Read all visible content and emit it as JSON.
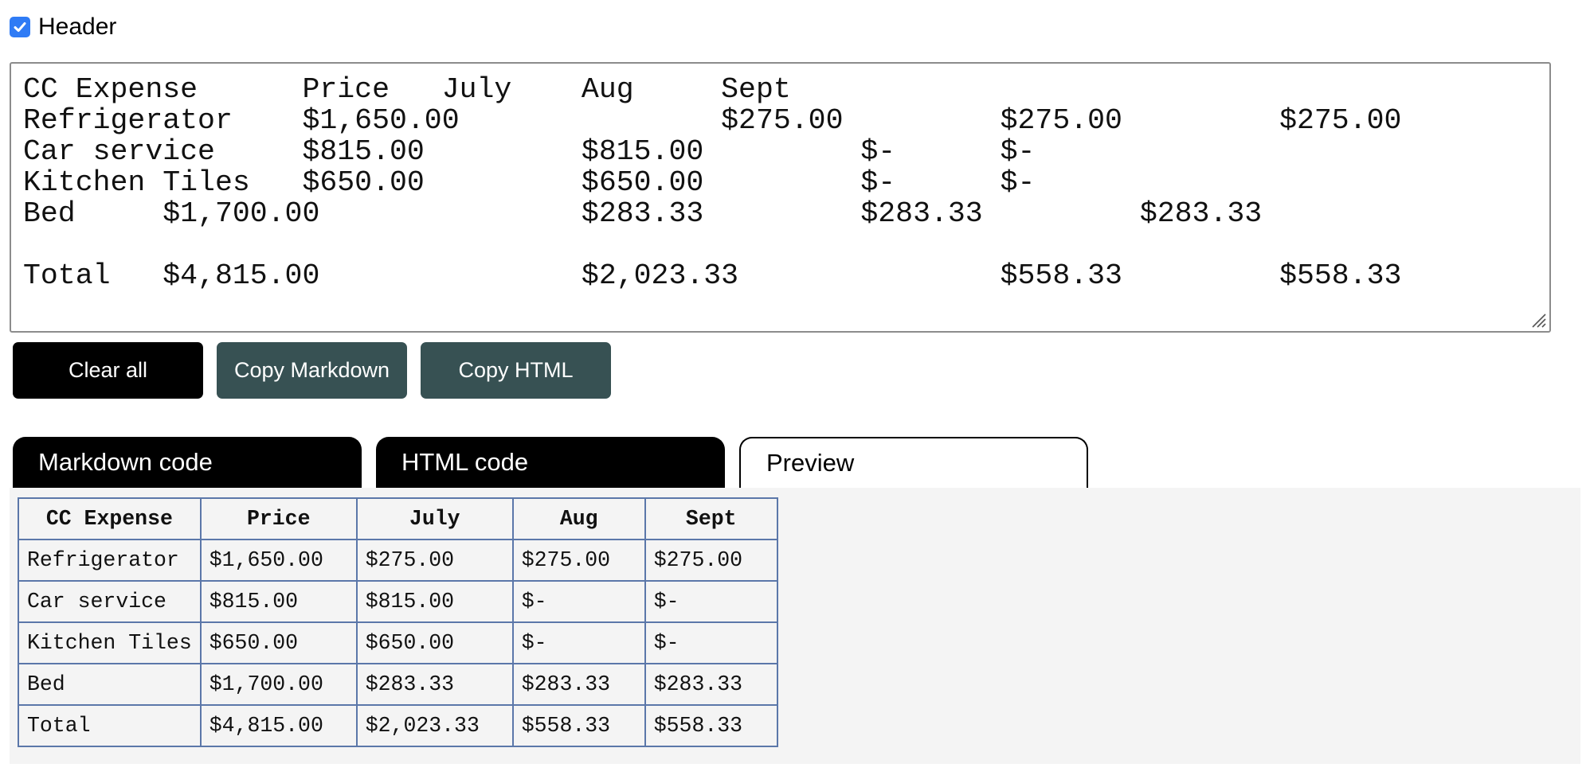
{
  "header_option": {
    "label": "Header",
    "checked": true
  },
  "source_text": "CC Expense\tPrice\tJuly\tAug\tSept\nRefrigerator\t$1,650.00\t\t$275.00\t\t$275.00\t\t$275.00\nCar service\t$815.00\t\t$815.00\t\t$-\t$-\nKitchen Tiles\t$650.00\t\t$650.00\t\t$-\t$-\nBed\t$1,700.00\t\t$283.33\t\t$283.33\t\t$283.33\n\nTotal\t$4,815.00\t\t$2,023.33\t\t$558.33\t\t$558.33",
  "buttons": {
    "clear": "Clear all",
    "copy_markdown": "Copy Markdown",
    "copy_html": "Copy HTML"
  },
  "tabs": {
    "markdown": "Markdown code",
    "html": "HTML code",
    "preview": "Preview",
    "active": "preview"
  },
  "preview_table": {
    "headers": [
      "CC Expense",
      "Price",
      "July",
      "Aug",
      "Sept"
    ],
    "rows": [
      [
        "Refrigerator",
        "$1,650.00",
        "$275.00",
        "$275.00",
        "$275.00"
      ],
      [
        "Car service",
        "$815.00",
        "$815.00",
        "$-",
        "$-"
      ],
      [
        "Kitchen Tiles",
        "$650.00",
        "$650.00",
        "$-",
        "$-"
      ],
      [
        "Bed",
        "$1,700.00",
        "$283.33",
        "$283.33",
        "$283.33"
      ],
      [
        "Total",
        "$4,815.00",
        "$2,023.33",
        "$558.33",
        "$558.33"
      ]
    ]
  },
  "colors": {
    "checkbox": "#2f7bf5",
    "primary_button": "#000000",
    "secondary_button": "#375153",
    "table_border": "#5b77a9",
    "preview_background": "#f4f4f4"
  }
}
